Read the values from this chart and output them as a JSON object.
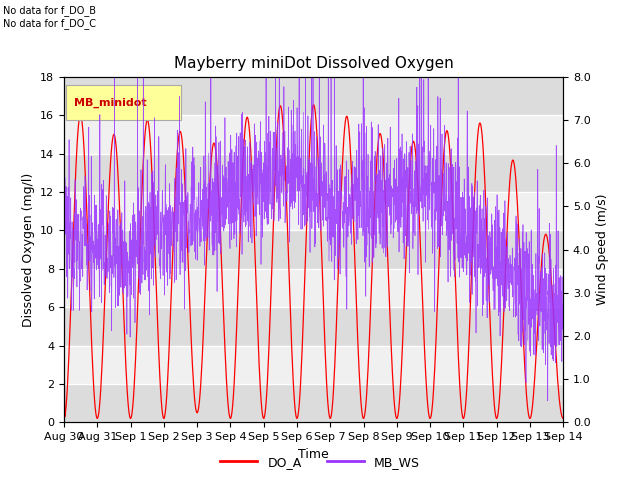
{
  "title": "Mayberry miniDot Dissolved Oxygen",
  "xlabel": "Time",
  "ylabel_left": "Dissolved Oxygen (mg/l)",
  "ylabel_right": "Wind Speed (m/s)",
  "annotation_lines": [
    "No data for f_DO_B",
    "No data for f_DO_C"
  ],
  "legend_box_label": "MB_minidot",
  "ylim_left": [
    0,
    18
  ],
  "ylim_right": [
    0.0,
    8.0
  ],
  "yticks_left": [
    0,
    2,
    4,
    6,
    8,
    10,
    12,
    14,
    16,
    18
  ],
  "yticks_right": [
    0.0,
    1.0,
    2.0,
    3.0,
    4.0,
    5.0,
    6.0,
    7.0,
    8.0
  ],
  "do_color": "#FF0000",
  "ws_color": "#9933FF",
  "background_color": "#E8E8E8",
  "plot_bg_color": "#F0F0F0",
  "legend_do_label": "DO_A",
  "legend_ws_label": "MB_WS",
  "title_fontsize": 11,
  "label_fontsize": 9,
  "tick_fontsize": 8,
  "xtick_labels": [
    "Aug 30",
    "Aug 31",
    "Sep 1",
    "Sep 2",
    "Sep 3",
    "Sep 4",
    "Sep 5",
    "Sep 6",
    "Sep 7",
    "Sep 8",
    "Sep 9",
    "Sep 10",
    "Sep 11",
    "Sep 12",
    "Sep 13",
    "Sep 14"
  ]
}
